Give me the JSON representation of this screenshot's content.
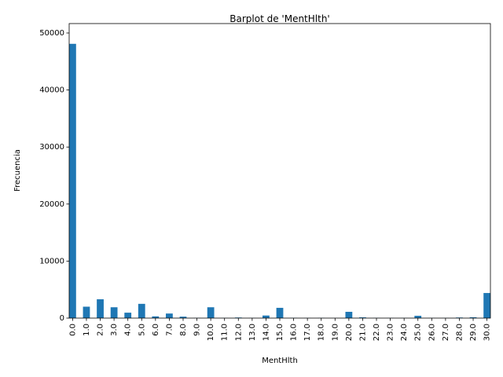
{
  "chart_data": {
    "type": "bar",
    "title": "Barplot de 'MentHlth'",
    "xlabel": "MentHlth",
    "ylabel": "Frecuencia",
    "ylim": [
      0,
      50000
    ],
    "yticks": [
      0,
      10000,
      20000,
      30000,
      40000,
      50000
    ],
    "grid": false,
    "bar_color": "#1f77b4",
    "categories": [
      "0.0",
      "1.0",
      "2.0",
      "3.0",
      "4.0",
      "5.0",
      "6.0",
      "7.0",
      "8.0",
      "9.0",
      "10.0",
      "11.0",
      "12.0",
      "13.0",
      "14.0",
      "15.0",
      "16.0",
      "17.0",
      "18.0",
      "19.0",
      "20.0",
      "21.0",
      "22.0",
      "23.0",
      "24.0",
      "25.0",
      "26.0",
      "27.0",
      "28.0",
      "29.0",
      "30.0"
    ],
    "values": [
      48100,
      2000,
      3300,
      1900,
      950,
      2500,
      300,
      800,
      250,
      30,
      1900,
      20,
      100,
      20,
      450,
      1800,
      40,
      20,
      30,
      10,
      1100,
      130,
      30,
      20,
      20,
      400,
      20,
      20,
      100,
      140,
      4400
    ]
  }
}
